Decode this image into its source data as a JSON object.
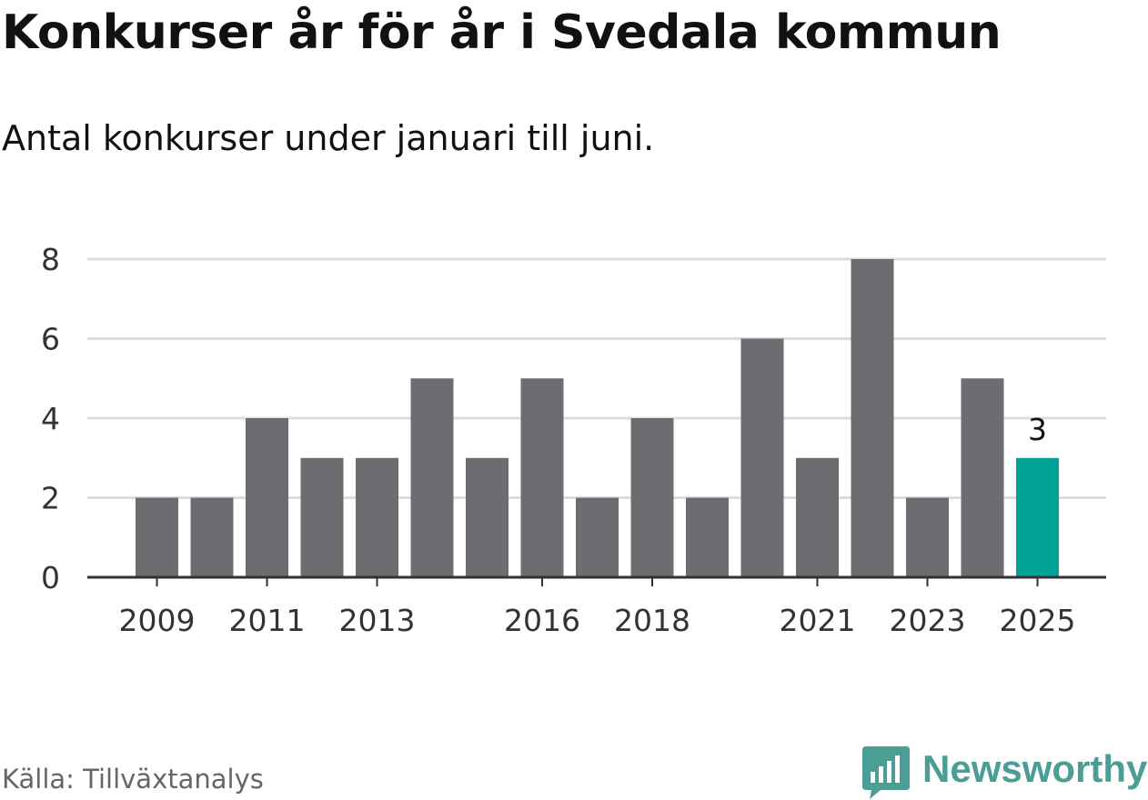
{
  "header": {
    "title": "Konkurser år för år i Svedala kommun",
    "subtitle": "Antal konkurser under januari till juni."
  },
  "footer": {
    "source": "Källa: Tillväxtanalys",
    "brand_name": "Newsworthy",
    "brand_icon": "bar-chart-badge-icon"
  },
  "colors": {
    "bar": "#6d6c71",
    "highlight": "#00a298",
    "grid": "#dcdcdc",
    "axis": "#333333",
    "text": "#333333",
    "brand": "#4a9e96"
  },
  "chart_data": {
    "type": "bar",
    "title": "Konkurser år för år i Svedala kommun",
    "subtitle": "Antal konkurser under januari till juni.",
    "xlabel": "",
    "ylabel": "",
    "categories": [
      "2009",
      "2010",
      "2011",
      "2012",
      "2013",
      "2014",
      "2015",
      "2016",
      "2017",
      "2018",
      "2019",
      "2020",
      "2021",
      "2022",
      "2023",
      "2024",
      "2025"
    ],
    "values": [
      2,
      2,
      4,
      3,
      3,
      5,
      3,
      5,
      2,
      4,
      2,
      6,
      3,
      8,
      2,
      5,
      3
    ],
    "x_tick_labels": [
      "2009",
      "2011",
      "2013",
      "2016",
      "2018",
      "2021",
      "2023",
      "2025"
    ],
    "ylim": [
      0,
      8
    ],
    "y_ticks": [
      0,
      2,
      4,
      6,
      8
    ],
    "grid": true,
    "highlight": {
      "category": "2025",
      "label": "3"
    }
  }
}
